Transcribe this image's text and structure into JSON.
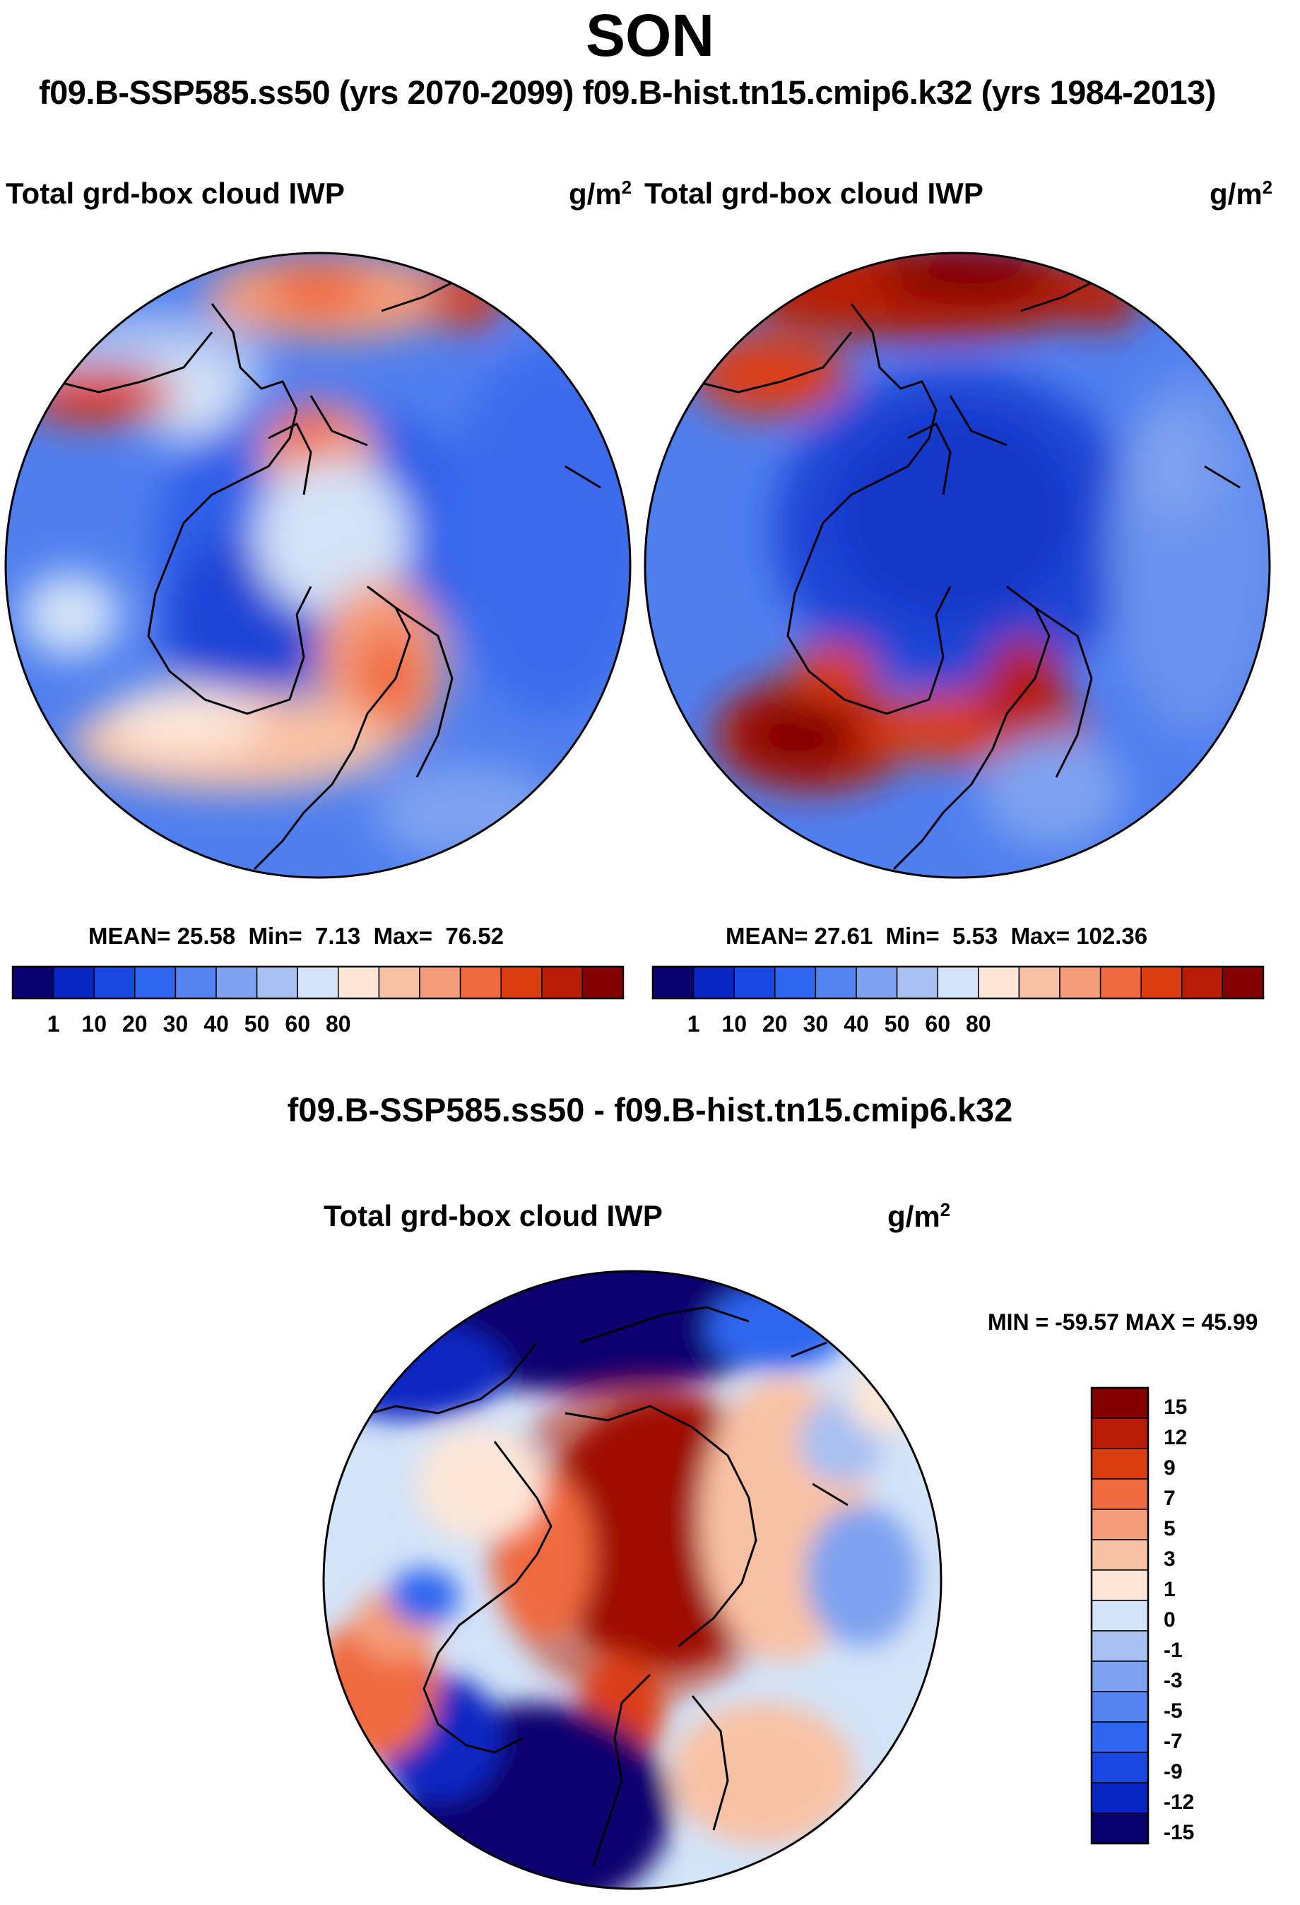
{
  "header": {
    "season": "SON",
    "subtitle": "f09.B-SSP585.ss50 (yrs 2070-2099)  f09.B-hist.tn15.cmip6.k32 (yrs 1984-2013)"
  },
  "panels": [
    {
      "id": "left",
      "variable": "Total grd-box cloud IWP",
      "units_base": "g/m",
      "units_exp": "2",
      "stats": {
        "mean_label": "MEAN=",
        "mean": "25.58",
        "min_label": "Min=",
        "min": "7.13",
        "max_label": "Max=",
        "max": "76.52"
      }
    },
    {
      "id": "right",
      "variable": "Total grd-box cloud IWP",
      "units_base": "g/m",
      "units_exp": "2",
      "stats": {
        "mean_label": "MEAN=",
        "mean": "27.61",
        "min_label": "Min=",
        "min": "5.53",
        "max_label": "Max=",
        "max": "102.36"
      }
    }
  ],
  "field_colorbar": {
    "colors": [
      "#08006e",
      "#0a26c2",
      "#1848e0",
      "#2f66f0",
      "#5584f0",
      "#7ea2f0",
      "#a9c0f2",
      "#d3e3f8",
      "#fde6d8",
      "#f9c1a4",
      "#f59c78",
      "#f06a3f",
      "#dc3c12",
      "#b81c06",
      "#820000"
    ],
    "tick_labels": [
      "1",
      "10",
      "20",
      "30",
      "40",
      "50",
      "60",
      "80"
    ]
  },
  "difference": {
    "title": "f09.B-SSP585.ss50 - f09.B-hist.tn15.cmip6.k32",
    "variable": "Total grd-box cloud IWP",
    "units_base": "g/m",
    "units_exp": "2",
    "minmax_text": "MIN = -59.57 MAX =  45.99"
  },
  "diff_colorbar": {
    "colors": [
      "#820000",
      "#b81c06",
      "#dc3c12",
      "#f06a3f",
      "#f59c78",
      "#f9c1a4",
      "#fde6d8",
      "#d3e3f8",
      "#a9c0f2",
      "#7ea2f0",
      "#5584f0",
      "#2f66f0",
      "#1848e0",
      "#0a26c2",
      "#08006e"
    ],
    "tick_labels": [
      "15",
      "12",
      "9",
      "7",
      "5",
      "3",
      "1",
      "0",
      "-1",
      "-3",
      "-5",
      "-7",
      "-9",
      "-12",
      "-15"
    ]
  }
}
